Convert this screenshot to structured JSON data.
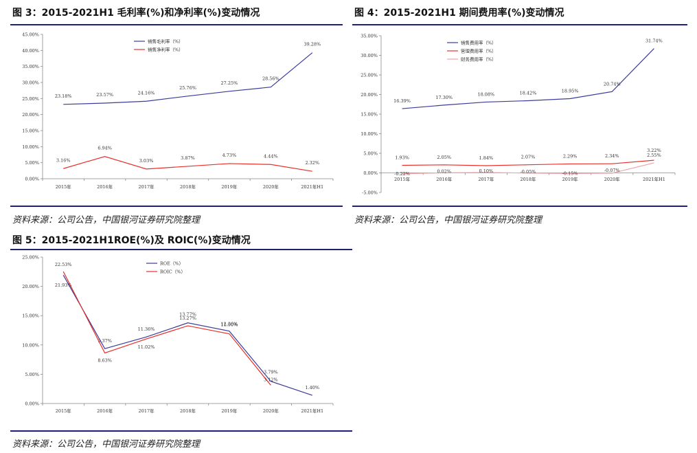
{
  "fig3": {
    "title": "图 3：2015-2021H1 毛利率(%)和净利率(%)变动情况",
    "source": "资料来源：公司公告，中国银河证券研究院整理"
  },
  "fig4": {
    "title": "图 4：2015-2021H1 期间费用率(%)变动情况",
    "source": "资料来源：公司公告，中国银河证券研究院整理"
  },
  "fig5": {
    "title": "图 5：2015-2021H1ROE(%)及 ROIC(%)变动情况",
    "source": "资料来源：公司公告，中国银河证券研究院整理"
  },
  "chart_data": [
    {
      "id": "fig3",
      "type": "line",
      "categories": [
        "2015年",
        "2016年",
        "2017年",
        "2018年",
        "2019年",
        "2020年",
        "2021年H1"
      ],
      "ylim": [
        0,
        45
      ],
      "yticks": [
        0,
        5,
        10,
        15,
        20,
        25,
        30,
        35,
        40,
        45
      ],
      "tick_labels": [
        "0.00%",
        "5.00%",
        "10.00%",
        "15.00%",
        "20.00%",
        "25.00%",
        "30.00%",
        "35.00%",
        "40.00%",
        "45.00%"
      ],
      "legend_position": "top-center",
      "series": [
        {
          "name": "销售毛利率（%）",
          "color": "#3b3b9a",
          "values": [
            23.18,
            23.57,
            24.16,
            25.76,
            27.25,
            28.56,
            39.28
          ],
          "labels": [
            "23.18%",
            "23.57%",
            "24.16%",
            "25.76%",
            "27.25%",
            "28.56%",
            "39.28%"
          ]
        },
        {
          "name": "销售净利率（%）",
          "color": "#e8302a",
          "values": [
            3.16,
            6.94,
            3.03,
            3.87,
            4.73,
            4.44,
            2.32
          ],
          "labels": [
            "3.16%",
            "6.94%",
            "3.03%",
            "3.87%",
            "4.73%",
            "4.44%",
            "2.32%"
          ]
        }
      ]
    },
    {
      "id": "fig4",
      "type": "line",
      "categories": [
        "2015年",
        "2016年",
        "2017年",
        "2018年",
        "2019年",
        "2020年",
        "2021年H1"
      ],
      "ylim": [
        -5,
        35
      ],
      "yticks": [
        -5,
        0,
        5,
        10,
        15,
        20,
        25,
        30,
        35
      ],
      "tick_labels": [
        "-5.00%",
        "0.00%",
        "5.00%",
        "10.00%",
        "15.00%",
        "20.00%",
        "25.00%",
        "30.00%",
        "35.00%"
      ],
      "legend_position": "top-center",
      "series": [
        {
          "name": "销售费用率（%）",
          "color": "#3b3b9a",
          "values": [
            16.39,
            17.3,
            18.08,
            18.42,
            18.95,
            20.74,
            31.74
          ],
          "labels": [
            "16.39%",
            "17.30%",
            "18.08%",
            "18.42%",
            "18.95%",
            "20.74%",
            "31.74%"
          ]
        },
        {
          "name": "管理费用率（%）",
          "color": "#e8302a",
          "values": [
            1.93,
            2.05,
            1.84,
            2.07,
            2.29,
            2.34,
            3.22
          ],
          "labels": [
            "1.93%",
            "2.05%",
            "1.84%",
            "2.07%",
            "2.29%",
            "2.34%",
            "3.22%"
          ]
        },
        {
          "name": "财务费用率（%）",
          "color": "#f0a0a8",
          "values": [
            -0.22,
            0.02,
            0.1,
            -0.05,
            -0.15,
            -0.07,
            2.55
          ],
          "labels": [
            "-0.22%",
            "0.02%",
            "0.10%",
            "-0.05%",
            "-0.15%",
            "-0.07%",
            "2.55%"
          ]
        }
      ]
    },
    {
      "id": "fig5",
      "type": "line",
      "categories": [
        "2015年",
        "2016年",
        "2017年",
        "2018年",
        "2019年",
        "2020年",
        "2021年H1"
      ],
      "ylim": [
        0,
        25
      ],
      "yticks": [
        0,
        5,
        10,
        15,
        20,
        25
      ],
      "tick_labels": [
        "0.00%",
        "5.00%",
        "10.00%",
        "15.00%",
        "20.00%",
        "25.00%"
      ],
      "legend_position": "top-center",
      "series": [
        {
          "name": "ROE（%）",
          "color": "#3b3b9a",
          "values": [
            21.93,
            9.37,
            11.36,
            13.77,
            12.36,
            3.79,
            1.4
          ],
          "labels": [
            "21.93%",
            "9.37%",
            "11.36%",
            "13.77%",
            "12.36%",
            "3.79%",
            "1.40%"
          ]
        },
        {
          "name": "ROIC（%）",
          "color": "#e8302a",
          "values": [
            22.53,
            8.63,
            11.02,
            13.27,
            11.9,
            3.12,
            null
          ],
          "labels": [
            "22.53%",
            "8.63%",
            "11.02%",
            "13.27%",
            "11.90%",
            "3.12%",
            ""
          ]
        }
      ]
    }
  ]
}
